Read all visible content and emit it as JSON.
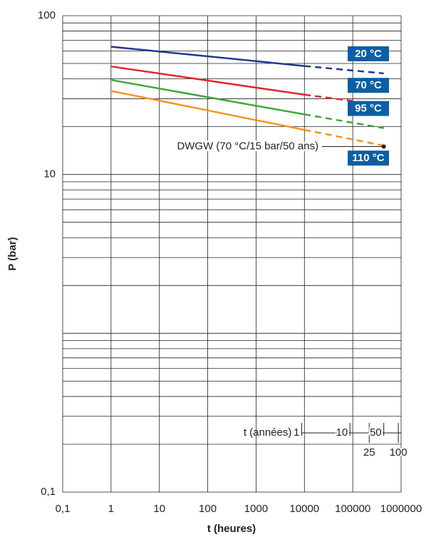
{
  "chart_data": {
    "type": "line",
    "x_label": "t (heures)",
    "y_label": "P (bar)",
    "xscale": "log",
    "yscale": "log",
    "xlim": [
      0.1,
      1000000
    ],
    "ylim": [
      0.1,
      100
    ],
    "xticks": [
      {
        "value": 0.1,
        "label": "0,1"
      },
      1,
      10,
      100,
      1000,
      10000,
      100000,
      1000000
    ],
    "yticks": [
      {
        "value": 0.1,
        "label": "0,1"
      },
      10,
      100
    ],
    "yminor": [
      0.2,
      0.3,
      0.4,
      0.5,
      0.6,
      0.7,
      0.8,
      0.9,
      1,
      2,
      3,
      4,
      5,
      6,
      7,
      8,
      9,
      20,
      30,
      40,
      50,
      60,
      70,
      80,
      90
    ],
    "grid": true,
    "x": [
      1,
      10000,
      438000
    ],
    "series": [
      {
        "name": "20 °C",
        "color": "#1f3a8f",
        "values": [
          63.8,
          48.2,
          43.3
        ]
      },
      {
        "name": "70 °C",
        "color": "#e3262b",
        "values": [
          47.9,
          31.8,
          27.4
        ]
      },
      {
        "name": "95 °C",
        "color": "#3aaa35",
        "values": [
          39.4,
          23.9,
          19.6
        ]
      },
      {
        "name": "110 °C",
        "color": "#f7941d",
        "values": [
          33.6,
          19.1,
          15.2
        ]
      }
    ],
    "label_color": "#0b5fa5",
    "annotation": {
      "text": "DWGW (70 °C/15 bar/50 ans)",
      "x": 438000,
      "y": 15
    },
    "year_axis": {
      "label": "t (années)",
      "xlim": [
        1.14155e-05,
        114.155
      ],
      "ticks": [
        1,
        10,
        25,
        50,
        100
      ]
    }
  }
}
